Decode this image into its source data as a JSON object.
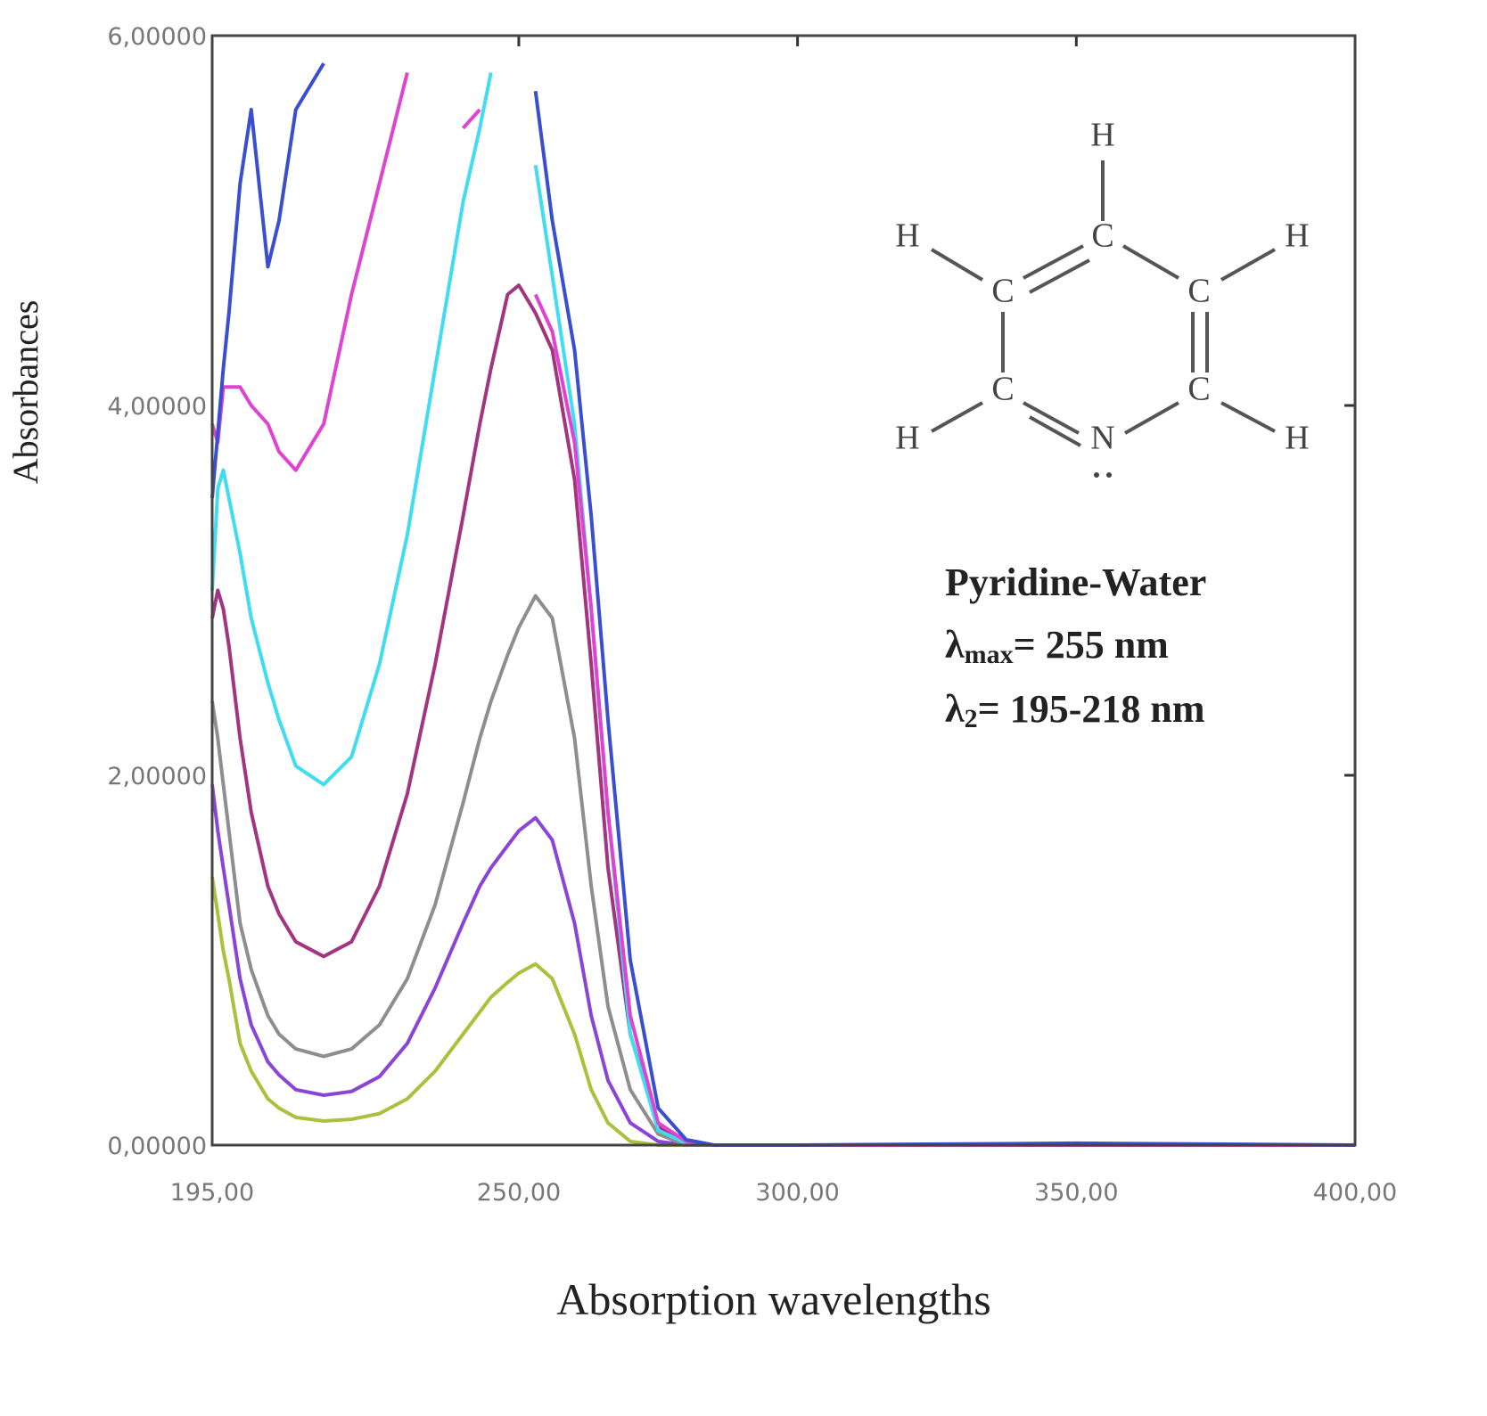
{
  "chart_data": {
    "type": "line",
    "xlabel": "Absorption wavelengths",
    "ylabel": "Absorbances",
    "x": [
      195,
      196,
      197,
      198,
      200,
      202,
      205,
      207,
      210,
      215,
      220,
      225,
      230,
      235,
      240,
      243,
      245,
      248,
      250,
      253,
      256,
      260,
      263,
      266,
      270,
      275,
      280,
      285,
      300,
      350,
      400
    ],
    "series": [
      {
        "color": "#a9c23c",
        "values": [
          1.45,
          1.25,
          1.05,
          0.9,
          0.55,
          0.4,
          0.25,
          0.2,
          0.15,
          0.13,
          0.14,
          0.17,
          0.25,
          0.4,
          0.6,
          0.72,
          0.8,
          0.88,
          0.93,
          0.98,
          0.9,
          0.6,
          0.3,
          0.12,
          0.02,
          0,
          0,
          0,
          0,
          0,
          0
        ]
      },
      {
        "color": "#8a45d6",
        "values": [
          1.95,
          1.7,
          1.5,
          1.3,
          0.9,
          0.65,
          0.45,
          0.38,
          0.3,
          0.27,
          0.29,
          0.37,
          0.55,
          0.85,
          1.2,
          1.4,
          1.5,
          1.62,
          1.7,
          1.77,
          1.65,
          1.2,
          0.7,
          0.35,
          0.12,
          0.02,
          0,
          0,
          0,
          0,
          0
        ]
      },
      {
        "color": "#8e8e8e",
        "values": [
          2.4,
          2.2,
          1.95,
          1.7,
          1.2,
          0.95,
          0.7,
          0.6,
          0.52,
          0.48,
          0.52,
          0.65,
          0.9,
          1.3,
          1.85,
          2.2,
          2.4,
          2.65,
          2.8,
          2.97,
          2.85,
          2.2,
          1.4,
          0.75,
          0.3,
          0.06,
          0,
          0,
          0,
          0,
          0
        ]
      },
      {
        "color": "#a2357f",
        "values": [
          2.85,
          3.0,
          2.9,
          2.7,
          2.2,
          1.8,
          1.4,
          1.25,
          1.1,
          1.02,
          1.1,
          1.4,
          1.9,
          2.6,
          3.4,
          3.9,
          4.2,
          4.6,
          4.65,
          4.5,
          4.3,
          3.6,
          2.6,
          1.5,
          0.6,
          0.1,
          0.01,
          0,
          0,
          0,
          0
        ]
      },
      {
        "color": "#40dcef",
        "values": [
          3.0,
          3.55,
          3.65,
          3.5,
          3.2,
          2.85,
          2.5,
          2.3,
          2.05,
          1.95,
          2.1,
          2.6,
          3.3,
          4.2,
          5.1,
          5.5,
          5.8,
          null,
          null,
          5.3,
          4.7,
          3.9,
          2.9,
          1.8,
          0.6,
          0.08,
          0.01,
          0,
          0,
          0,
          0
        ]
      },
      {
        "color": "#e043d2",
        "values": [
          3.9,
          3.8,
          4.1,
          4.1,
          4.1,
          4.0,
          3.9,
          3.75,
          3.65,
          3.9,
          4.6,
          5.2,
          5.8,
          null,
          5.5,
          5.6,
          null,
          null,
          null,
          4.6,
          4.4,
          3.8,
          2.9,
          1.8,
          0.7,
          0.12,
          0.02,
          0,
          0,
          0,
          0
        ]
      },
      {
        "color": "#3a4fd0",
        "values": [
          3.5,
          3.85,
          4.2,
          4.5,
          5.2,
          5.6,
          4.75,
          5.0,
          5.6,
          5.85,
          null,
          null,
          null,
          null,
          null,
          null,
          null,
          null,
          null,
          5.7,
          5.0,
          4.3,
          3.4,
          2.3,
          1.0,
          0.2,
          0.03,
          0,
          0,
          0.01,
          0
        ]
      }
    ],
    "xlim": [
      195,
      400
    ],
    "xticks": [
      {
        "value": 195,
        "label": "195,00"
      },
      {
        "value": 250,
        "label": "250,00"
      },
      {
        "value": 300,
        "label": "300,00"
      },
      {
        "value": 350,
        "label": "350,00"
      },
      {
        "value": 400,
        "label": "400,00"
      }
    ],
    "ylim": [
      0,
      6
    ],
    "yticks": [
      {
        "value": 0,
        "label": "0,00000"
      },
      {
        "value": 2,
        "label": "2,00000"
      },
      {
        "value": 4,
        "label": "4,00000"
      },
      {
        "value": 6,
        "label": "6,00000"
      }
    ],
    "grid": false,
    "annotations": [
      "Pyridine-Water",
      "λ",
      "max",
      "= 255 nm",
      "λ",
      "2",
      "= 195-218 nm"
    ],
    "structure": {
      "atoms": [
        "H",
        "C",
        "H",
        "H",
        "C",
        "C",
        "C",
        "C",
        "H",
        "H",
        "N"
      ]
    }
  }
}
